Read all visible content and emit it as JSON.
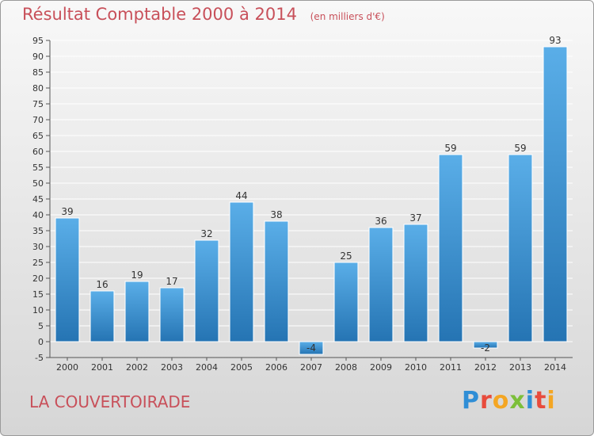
{
  "header": {
    "title": "Résultat Comptable 2000 à 2014",
    "unit": "(en milliers d'€)"
  },
  "footer": {
    "place": "LA COUVERTOIRADE",
    "brand_letters": [
      "P",
      "r",
      "o",
      "x",
      "i",
      "t",
      "i"
    ],
    "brand_colors": [
      "#2f8ed6",
      "#e84b3c",
      "#f4a623",
      "#7cbf3a",
      "#2f8ed6",
      "#e84b3c",
      "#f4a623"
    ]
  },
  "chart_data": {
    "type": "bar",
    "title": "Résultat Comptable 2000 à 2014",
    "categories": [
      "2000",
      "2001",
      "2002",
      "2003",
      "2004",
      "2005",
      "2006",
      "2007",
      "2008",
      "2009",
      "2010",
      "2011",
      "2012",
      "2013",
      "2014"
    ],
    "values": [
      39,
      16,
      19,
      17,
      32,
      44,
      38,
      -4,
      25,
      36,
      37,
      59,
      -2,
      59,
      93
    ],
    "ylim": [
      -5,
      95
    ],
    "yticks": [
      -5,
      0,
      5,
      10,
      15,
      20,
      25,
      30,
      35,
      40,
      45,
      50,
      55,
      60,
      65,
      70,
      75,
      80,
      85,
      90,
      95
    ],
    "grid": true,
    "bar_color": "#3b93d6",
    "title_color": "#c8505a"
  }
}
